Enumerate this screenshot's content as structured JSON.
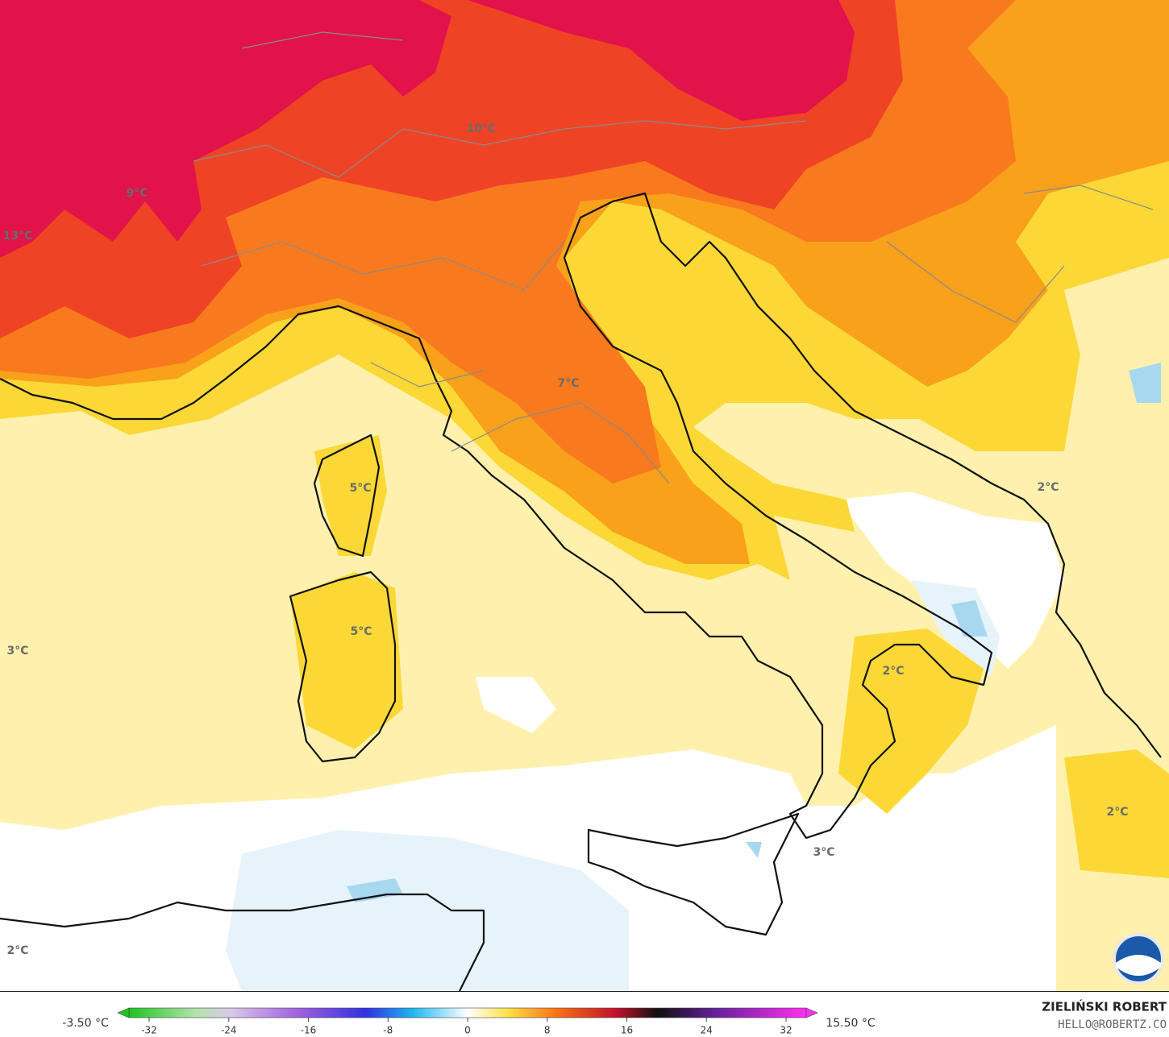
{
  "map": {
    "labels": [
      "13°C",
      "9°C",
      "10°C",
      "7°C",
      "5°C",
      "5°C",
      "3°C",
      "2°C",
      "2°C",
      "3°C",
      "2°C",
      "2°C"
    ],
    "colorbar": {
      "lim": [
        -32,
        32
      ],
      "ticks": [
        -32,
        -24,
        -16,
        -8,
        0,
        8,
        16,
        24,
        32
      ],
      "min_label": "-3.50 °C",
      "max_label": "15.50 °C"
    },
    "author": "ZIELIŃSKI ROBERT",
    "contact": "HELLO@ROBERTZ.CO"
  }
}
